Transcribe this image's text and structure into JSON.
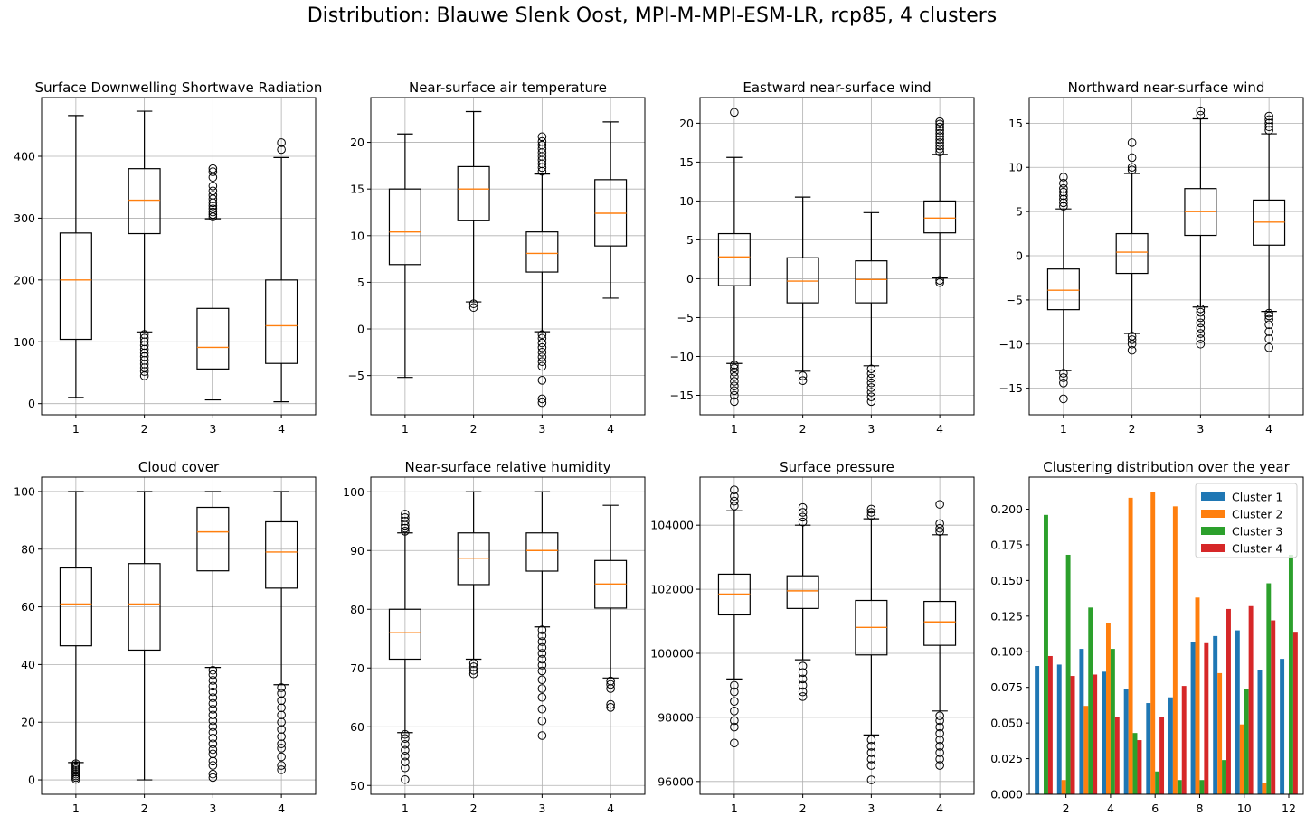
{
  "figure": {
    "title": "Distribution: Blauwe Slenk Oost, MPI-M-MPI-ESM-LR, rcp85, 4 clusters"
  },
  "colors": {
    "median": "#ff7f0e",
    "grid": "#b0b0b0",
    "box": "#000000",
    "cluster_colors": [
      "#1f77b4",
      "#ff7f0e",
      "#2ca02c",
      "#d62728"
    ]
  },
  "chart_data": [
    {
      "type": "box",
      "title": "Surface Downwelling Shortwave Radiation",
      "categories": [
        "1",
        "2",
        "3",
        "4"
      ],
      "ylim": [
        -18,
        495
      ],
      "yticks": [
        0,
        100,
        200,
        300,
        400
      ],
      "ytick_labels": [
        "0",
        "100",
        "200",
        "300",
        "400"
      ],
      "grid": true,
      "boxes": [
        {
          "whislo": 10,
          "q1": 104,
          "med": 200,
          "q3": 276,
          "whishi": 466,
          "fliers": []
        },
        {
          "whislo": 116,
          "q1": 275,
          "med": 329,
          "q3": 380,
          "whishi": 473,
          "fliers": [
            45,
            52,
            58,
            64,
            70,
            76,
            82,
            88,
            94,
            100,
            106,
            112
          ]
        },
        {
          "whislo": 6,
          "q1": 56,
          "med": 91,
          "q3": 154,
          "whishi": 299,
          "fliers": [
            302,
            306,
            310,
            315,
            320,
            325,
            331,
            337,
            344,
            352,
            366,
            375,
            380
          ]
        },
        {
          "whislo": 3,
          "q1": 65,
          "med": 126,
          "q3": 200,
          "whishi": 398,
          "fliers": [
            411,
            422
          ]
        }
      ]
    },
    {
      "type": "box",
      "title": "Near-surface air temperature",
      "categories": [
        "1",
        "2",
        "3",
        "4"
      ],
      "ylim": [
        -9.2,
        24.8
      ],
      "yticks": [
        -5,
        0,
        5,
        10,
        15,
        20
      ],
      "ytick_labels": [
        "−5",
        "0",
        "5",
        "10",
        "15",
        "20"
      ],
      "grid": true,
      "boxes": [
        {
          "whislo": -5.2,
          "q1": 6.9,
          "med": 10.4,
          "q3": 15.0,
          "whishi": 20.9,
          "fliers": []
        },
        {
          "whislo": 2.9,
          "q1": 11.6,
          "med": 15.0,
          "q3": 17.4,
          "whishi": 23.3,
          "fliers": [
            2.3,
            2.7
          ]
        },
        {
          "whislo": -0.3,
          "q1": 6.1,
          "med": 8.1,
          "q3": 10.4,
          "whishi": 16.6,
          "fliers": [
            -7.9,
            -7.5,
            -5.5,
            -4.0,
            -3.5,
            -3.0,
            -2.5,
            -2.0,
            -1.5,
            -1.0,
            -0.6,
            16.9,
            17.3,
            17.7,
            18.1,
            18.5,
            18.9,
            19.3,
            19.7,
            20.1,
            20.6
          ]
        },
        {
          "whislo": 3.3,
          "q1": 8.9,
          "med": 12.4,
          "q3": 16.0,
          "whishi": 22.2,
          "fliers": []
        }
      ]
    },
    {
      "type": "box",
      "title": "Eastward near-surface wind",
      "categories": [
        "1",
        "2",
        "3",
        "4"
      ],
      "ylim": [
        -17.5,
        23.3
      ],
      "yticks": [
        -15,
        -10,
        -5,
        0,
        5,
        10,
        15,
        20
      ],
      "ytick_labels": [
        "−15",
        "−10",
        "−5",
        "0",
        "5",
        "10",
        "15",
        "20"
      ],
      "grid": true,
      "boxes": [
        {
          "whislo": -10.9,
          "q1": -0.9,
          "med": 2.8,
          "q3": 5.8,
          "whishi": 15.6,
          "fliers": [
            -15.8,
            -15.0,
            -14.4,
            -13.8,
            -13.2,
            -12.6,
            -12.0,
            -11.5,
            -11.1,
            21.4
          ]
        },
        {
          "whislo": -11.9,
          "q1": -3.1,
          "med": -0.3,
          "q3": 2.7,
          "whishi": 10.5,
          "fliers": [
            -13.1,
            -12.5
          ]
        },
        {
          "whislo": -11.2,
          "q1": -3.1,
          "med": -0.1,
          "q3": 2.3,
          "whishi": 8.5,
          "fliers": [
            -15.8,
            -15.2,
            -14.6,
            -14.0,
            -13.4,
            -12.8,
            -12.2,
            -11.6
          ]
        },
        {
          "whislo": 0.1,
          "q1": 5.9,
          "med": 7.8,
          "q3": 10.0,
          "whishi": 16.0,
          "fliers": [
            -0.5,
            -0.2,
            16.3,
            16.7,
            17.1,
            17.5,
            17.9,
            18.3,
            18.7,
            19.1,
            19.5,
            19.9,
            20.2
          ]
        }
      ]
    },
    {
      "type": "box",
      "title": "Northward near-surface wind",
      "categories": [
        "1",
        "2",
        "3",
        "4"
      ],
      "ylim": [
        -18.0,
        17.9
      ],
      "yticks": [
        -15,
        -10,
        -5,
        0,
        5,
        10,
        15
      ],
      "ytick_labels": [
        "−15",
        "−10",
        "−5",
        "0",
        "5",
        "10",
        "15"
      ],
      "grid": true,
      "boxes": [
        {
          "whislo": -13.0,
          "q1": -6.1,
          "med": -3.9,
          "q3": -1.5,
          "whishi": 5.3,
          "fliers": [
            -16.2,
            -14.4,
            -13.8,
            -13.3,
            5.6,
            6.0,
            6.4,
            6.8,
            7.2,
            7.6,
            8.2,
            8.9
          ]
        },
        {
          "whislo": -8.8,
          "q1": -2.0,
          "med": 0.4,
          "q3": 2.5,
          "whishi": 9.3,
          "fliers": [
            -10.7,
            -10.0,
            -9.5,
            -9.1,
            9.7,
            10.0,
            11.1,
            12.8
          ]
        },
        {
          "whislo": -5.8,
          "q1": 2.3,
          "med": 5.0,
          "q3": 7.6,
          "whishi": 15.5,
          "fliers": [
            -10.0,
            -9.4,
            -8.8,
            -8.2,
            -7.6,
            -7.0,
            -6.4,
            -6.0,
            15.9,
            16.4
          ]
        },
        {
          "whislo": -6.3,
          "q1": 1.2,
          "med": 3.8,
          "q3": 6.3,
          "whishi": 13.8,
          "fliers": [
            -10.4,
            -9.4,
            -8.6,
            -7.8,
            -7.2,
            -6.8,
            -6.5,
            14.2,
            14.6,
            15.0,
            15.4,
            15.8
          ]
        }
      ]
    },
    {
      "type": "box",
      "title": "Cloud cover",
      "categories": [
        "1",
        "2",
        "3",
        "4"
      ],
      "ylim": [
        -5,
        105
      ],
      "yticks": [
        0,
        20,
        40,
        60,
        80,
        100
      ],
      "ytick_labels": [
        "0",
        "20",
        "40",
        "60",
        "80",
        "100"
      ],
      "grid": true,
      "boxes": [
        {
          "whislo": 6,
          "q1": 46.5,
          "med": 61,
          "q3": 73.5,
          "whishi": 100,
          "fliers": [
            0.2,
            0.8,
            1.4,
            2.0,
            2.6,
            3.2,
            3.8,
            4.4,
            5.0,
            5.6
          ]
        },
        {
          "whislo": 0,
          "q1": 45,
          "med": 61,
          "q3": 75,
          "whishi": 100,
          "fliers": []
        },
        {
          "whislo": 39,
          "q1": 72.5,
          "med": 86,
          "q3": 94.5,
          "whishi": 100,
          "fliers": [
            0.8,
            2.0,
            5.0,
            6.5,
            9.0,
            10.5,
            12.5,
            14.5,
            16.5,
            18.5,
            20.5,
            22.5,
            24.5,
            26.5,
            28.5,
            30.5,
            32.5,
            34.5,
            36.5,
            38.0
          ]
        },
        {
          "whislo": 33,
          "q1": 66.5,
          "med": 79,
          "q3": 89.5,
          "whishi": 100,
          "fliers": [
            3.5,
            5.0,
            8.0,
            11.0,
            12.5,
            15.0,
            17.5,
            20.0,
            22.5,
            25.0,
            27.5,
            30.0,
            32.0
          ]
        }
      ]
    },
    {
      "type": "box",
      "title": "Near-surface relative humidity",
      "categories": [
        "1",
        "2",
        "3",
        "4"
      ],
      "ylim": [
        48.5,
        102.5
      ],
      "yticks": [
        50,
        60,
        70,
        80,
        90,
        100
      ],
      "ytick_labels": [
        "50",
        "60",
        "70",
        "80",
        "90",
        "100"
      ],
      "grid": true,
      "boxes": [
        {
          "whislo": 59,
          "q1": 71.5,
          "med": 76,
          "q3": 80,
          "whishi": 93,
          "fliers": [
            51.0,
            53.0,
            54.0,
            55.0,
            56.0,
            57.0,
            58.0,
            58.7,
            93.3,
            93.8,
            94.3,
            95.0,
            95.6,
            96.2
          ]
        },
        {
          "whislo": 71.5,
          "q1": 84.2,
          "med": 88.7,
          "q3": 93,
          "whishi": 100,
          "fliers": [
            69.0,
            69.6,
            70.2,
            70.8
          ]
        },
        {
          "whislo": 77,
          "q1": 86.5,
          "med": 90,
          "q3": 93,
          "whishi": 100,
          "fliers": [
            58.5,
            61.0,
            63.0,
            65.0,
            66.5,
            68.0,
            69.5,
            70.5,
            71.5,
            72.5,
            73.5,
            74.5,
            75.5,
            76.5
          ]
        },
        {
          "whislo": 68.3,
          "q1": 80.2,
          "med": 84.3,
          "q3": 88.3,
          "whishi": 97.7,
          "fliers": [
            63.3,
            63.8,
            66.5,
            67.2,
            67.8
          ]
        }
      ]
    },
    {
      "type": "box",
      "title": "Surface pressure",
      "categories": [
        "1",
        "2",
        "3",
        "4"
      ],
      "ylim": [
        95600,
        105500
      ],
      "yticks": [
        96000,
        98000,
        100000,
        102000,
        104000
      ],
      "ytick_labels": [
        "96000",
        "98000",
        "100000",
        "102000",
        "104000"
      ],
      "grid": true,
      "boxes": [
        {
          "whislo": 99200,
          "q1": 101200,
          "med": 101850,
          "q3": 102470,
          "whishi": 104450,
          "fliers": [
            97200,
            97700,
            97900,
            98200,
            98500,
            98800,
            99000,
            104600,
            104750,
            104900,
            105100
          ]
        },
        {
          "whislo": 99800,
          "q1": 101400,
          "med": 101950,
          "q3": 102420,
          "whishi": 104000,
          "fliers": [
            98650,
            98800,
            99000,
            99200,
            99400,
            99600,
            104100,
            104250,
            104400,
            104550
          ]
        },
        {
          "whislo": 97450,
          "q1": 99950,
          "med": 100810,
          "q3": 101650,
          "whishi": 104200,
          "fliers": [
            96050,
            96500,
            96700,
            96900,
            97100,
            97300,
            104300,
            104400,
            104500
          ]
        },
        {
          "whislo": 98200,
          "q1": 100250,
          "med": 100980,
          "q3": 101620,
          "whishi": 103700,
          "fliers": [
            96500,
            96700,
            96900,
            97100,
            97300,
            97500,
            97700,
            97900,
            98050,
            103800,
            103900,
            104050,
            104650
          ]
        }
      ]
    },
    {
      "type": "bar",
      "title": "Clustering distribution over the year",
      "x": [
        1,
        2,
        3,
        4,
        5,
        6,
        7,
        8,
        9,
        10,
        11,
        12
      ],
      "xlim": [
        0.35,
        12.65
      ],
      "xticks": [
        2,
        4,
        6,
        8,
        10,
        12
      ],
      "xtick_labels": [
        "2",
        "4",
        "6",
        "8",
        "10",
        "12"
      ],
      "ylim": [
        0,
        0.2225
      ],
      "yticks": [
        0.0,
        0.025,
        0.05,
        0.075,
        0.1,
        0.125,
        0.15,
        0.175,
        0.2
      ],
      "ytick_labels": [
        "0.000",
        "0.025",
        "0.050",
        "0.075",
        "0.100",
        "0.125",
        "0.150",
        "0.175",
        "0.200"
      ],
      "grid": false,
      "legend": "upper right",
      "series": [
        {
          "name": "Cluster 1",
          "values": [
            0.09,
            0.091,
            0.102,
            0.086,
            0.074,
            0.064,
            0.068,
            0.107,
            0.111,
            0.115,
            0.087,
            0.095
          ]
        },
        {
          "name": "Cluster 2",
          "values": [
            0.0,
            0.01,
            0.062,
            0.12,
            0.208,
            0.212,
            0.202,
            0.138,
            0.085,
            0.049,
            0.008,
            0.0
          ]
        },
        {
          "name": "Cluster 3",
          "values": [
            0.196,
            0.168,
            0.131,
            0.102,
            0.043,
            0.016,
            0.01,
            0.01,
            0.024,
            0.074,
            0.148,
            0.168
          ]
        },
        {
          "name": "Cluster 4",
          "values": [
            0.097,
            0.083,
            0.084,
            0.054,
            0.038,
            0.054,
            0.076,
            0.106,
            0.13,
            0.132,
            0.122,
            0.114
          ]
        }
      ]
    }
  ]
}
